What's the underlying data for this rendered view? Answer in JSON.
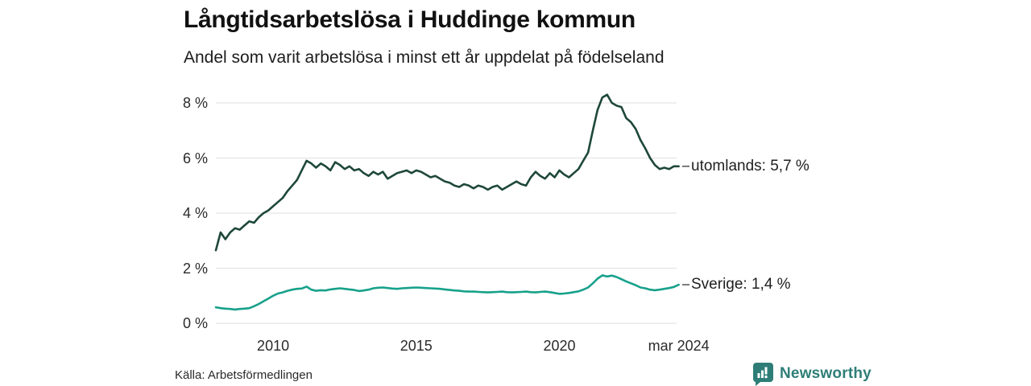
{
  "header": {
    "title": "Långtidsarbetslösa i Huddinge kommun",
    "subtitle": "Andel som varit arbetslösa i minst ett år uppdelat på födelseland"
  },
  "footer": {
    "source": "Källa: Arbetsförmedlingen",
    "brand_name": "Newsworthy",
    "brand_icon": "newsworthy-bar-chart-bubble-icon"
  },
  "colors": {
    "background": "#ffffff",
    "title_text": "#111111",
    "axis_text": "#2b2b2b",
    "grid": "#e4e4e4",
    "leader_dash": "#5a5a5a",
    "series_utomlands": "#1e4839",
    "series_sverige": "#17a18b",
    "brand_teal": "#2e7e77"
  },
  "chart_data": {
    "type": "line",
    "title": "Långtidsarbetslösa i Huddinge kommun",
    "subtitle": "Andel som varit arbetslösa i minst ett år uppdelat på födelseland",
    "xlabel": "",
    "ylabel": "",
    "grid": true,
    "legend_position": "right-of-line-end",
    "x_start": 2008,
    "x_step": 0.166667,
    "x_end": 2024.166667,
    "x_ticks": [
      {
        "label": "2010",
        "value": 2010
      },
      {
        "label": "2015",
        "value": 2015
      },
      {
        "label": "2020",
        "value": 2020
      },
      {
        "label": "mar 2024",
        "value": 2024.166667
      }
    ],
    "y_ticks": [
      {
        "label": "0 %",
        "value": 0
      },
      {
        "label": "2 %",
        "value": 2
      },
      {
        "label": "4 %",
        "value": 4
      },
      {
        "label": "6 %",
        "value": 6
      },
      {
        "label": "8 %",
        "value": 8
      }
    ],
    "ylim": [
      0,
      8.6
    ],
    "unit": "%",
    "series": [
      {
        "name": "utomlands",
        "end_label": "utomlands: 5,7 %",
        "last_value": "5,7 %",
        "color": "#1e4839",
        "values": [
          2.65,
          3.3,
          3.05,
          3.3,
          3.45,
          3.4,
          3.55,
          3.7,
          3.65,
          3.85,
          4,
          4.1,
          4.25,
          4.4,
          4.55,
          4.8,
          5,
          5.2,
          5.55,
          5.9,
          5.8,
          5.65,
          5.8,
          5.7,
          5.55,
          5.85,
          5.75,
          5.6,
          5.7,
          5.55,
          5.6,
          5.45,
          5.35,
          5.5,
          5.4,
          5.5,
          5.25,
          5.35,
          5.45,
          5.5,
          5.55,
          5.45,
          5.55,
          5.5,
          5.4,
          5.3,
          5.35,
          5.25,
          5.15,
          5.1,
          5,
          4.95,
          5.05,
          5,
          4.9,
          5,
          4.95,
          4.85,
          4.95,
          5,
          4.85,
          4.95,
          5.05,
          5.15,
          5.05,
          5,
          5.3,
          5.5,
          5.35,
          5.25,
          5.45,
          5.3,
          5.55,
          5.4,
          5.3,
          5.45,
          5.6,
          5.9,
          6.2,
          7,
          7.75,
          8.2,
          8.3,
          8,
          7.9,
          7.85,
          7.45,
          7.3,
          7.05,
          6.65,
          6.35,
          6,
          5.75,
          5.6,
          5.65,
          5.6,
          5.7,
          5.7
        ]
      },
      {
        "name": "Sverige",
        "end_label": "Sverige: 1,4 %",
        "last_value": "1,4 %",
        "color": "#17a18b",
        "values": [
          0.58,
          0.55,
          0.53,
          0.52,
          0.5,
          0.52,
          0.53,
          0.55,
          0.62,
          0.7,
          0.8,
          0.9,
          1,
          1.08,
          1.12,
          1.18,
          1.22,
          1.25,
          1.26,
          1.33,
          1.22,
          1.18,
          1.2,
          1.19,
          1.23,
          1.25,
          1.27,
          1.25,
          1.23,
          1.21,
          1.17,
          1.19,
          1.22,
          1.27,
          1.29,
          1.3,
          1.28,
          1.26,
          1.25,
          1.27,
          1.28,
          1.29,
          1.3,
          1.29,
          1.28,
          1.27,
          1.26,
          1.25,
          1.23,
          1.21,
          1.19,
          1.18,
          1.16,
          1.15,
          1.15,
          1.14,
          1.13,
          1.12,
          1.13,
          1.14,
          1.15,
          1.13,
          1.12,
          1.13,
          1.14,
          1.15,
          1.13,
          1.12,
          1.14,
          1.15,
          1.13,
          1.1,
          1.07,
          1.08,
          1.1,
          1.13,
          1.16,
          1.22,
          1.3,
          1.45,
          1.62,
          1.74,
          1.7,
          1.73,
          1.68,
          1.6,
          1.52,
          1.45,
          1.38,
          1.3,
          1.27,
          1.22,
          1.2,
          1.22,
          1.25,
          1.28,
          1.32,
          1.4
        ]
      }
    ]
  }
}
